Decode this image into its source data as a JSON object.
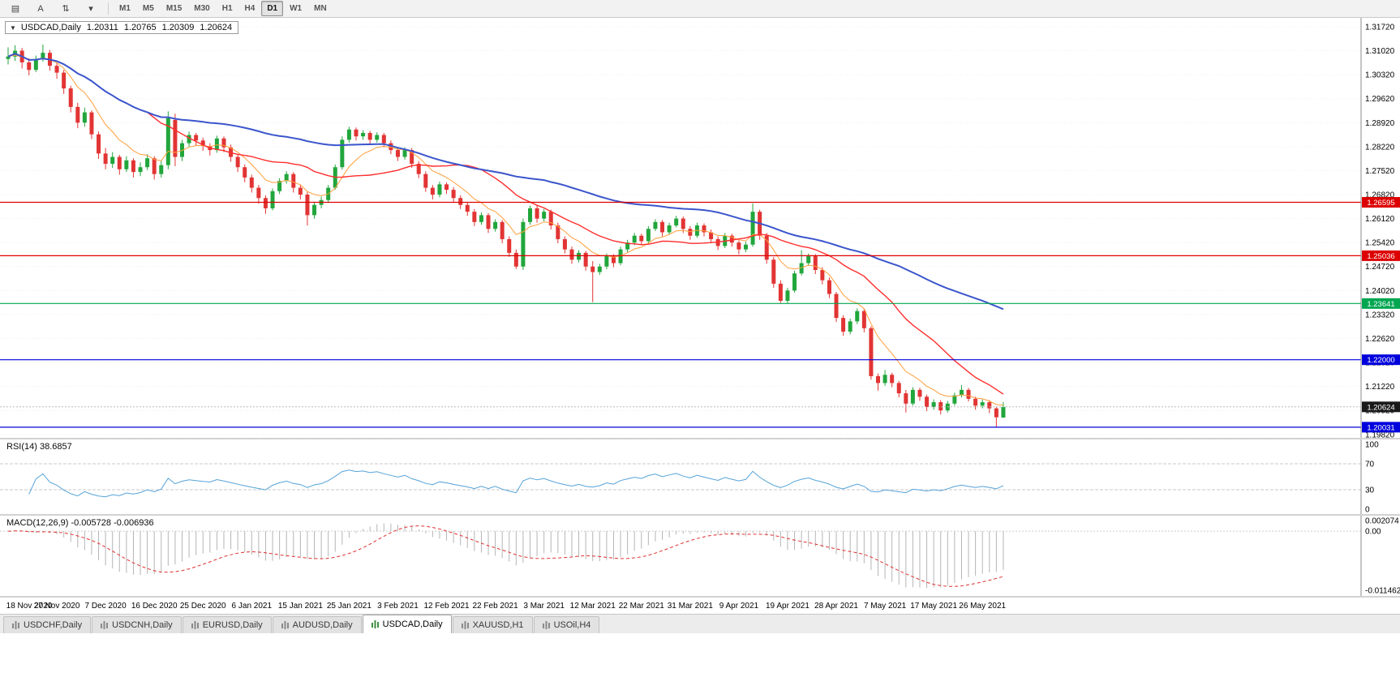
{
  "toolbar": {
    "icons": [
      {
        "name": "menu-icon",
        "glyph": "▤"
      },
      {
        "name": "text-tool-button",
        "glyph": "A"
      },
      {
        "name": "scale-tool-icon",
        "glyph": "⇅"
      },
      {
        "name": "dropdown-arrow-icon",
        "glyph": "▾"
      }
    ],
    "timeframes": [
      {
        "label": "M1",
        "active": false
      },
      {
        "label": "M5",
        "active": false
      },
      {
        "label": "M15",
        "active": false
      },
      {
        "label": "M30",
        "active": false
      },
      {
        "label": "H1",
        "active": false
      },
      {
        "label": "H4",
        "active": false
      },
      {
        "label": "D1",
        "active": true
      },
      {
        "label": "W1",
        "active": false
      },
      {
        "label": "MN",
        "active": false
      }
    ]
  },
  "chart": {
    "type": "candlestick",
    "header": {
      "collapse_glyph": "▼",
      "symbol": "USDCAD,Daily",
      "open": "1.20311",
      "high": "1.20765",
      "low": "1.20309",
      "close": "1.20624"
    },
    "colors": {
      "up": "#21a63c",
      "down": "#e23434",
      "grid": "#ececec",
      "axis_line": "#8a8a8a",
      "axis_text": "#000000"
    },
    "price_axis": {
      "start": 1.3172,
      "step": 0.007,
      "count": 18,
      "decimals": 5
    },
    "scale": {
      "top": 1.3198,
      "bottom": 1.1972
    },
    "hlines": [
      {
        "price": 1.26595,
        "label": "1.26595",
        "color": "#dd0000"
      },
      {
        "price": 1.25036,
        "label": "1.25036",
        "color": "#dd0000"
      },
      {
        "price": 1.23641,
        "label": "1.23641",
        "color": "#00a650"
      },
      {
        "price": 1.22,
        "label": "1.22000",
        "color": "#0000dd"
      },
      {
        "price": 1.20031,
        "label": "1.20031",
        "color": "#0000dd"
      }
    ],
    "current_price": {
      "price": 1.20624,
      "label": "1.20624",
      "bg": "#1a1a1a"
    },
    "ma_settings": [
      {
        "period": 8,
        "method": "ema",
        "color": "#ff9f3c",
        "width": 1
      },
      {
        "period": 21,
        "method": "sma",
        "color": "#ff2d2d",
        "width": 1.4
      },
      {
        "period": 55,
        "method": "sma",
        "color": "#3b55cc",
        "width": 2
      }
    ],
    "candles": [
      [
        1.3078,
        1.3112,
        1.3062,
        1.3085
      ],
      [
        1.3085,
        1.3118,
        1.3072,
        1.3102
      ],
      [
        1.3102,
        1.311,
        1.305,
        1.3068
      ],
      [
        1.3068,
        1.308,
        1.303,
        1.3046
      ],
      [
        1.3046,
        1.3088,
        1.304,
        1.3078
      ],
      [
        1.3078,
        1.312,
        1.307,
        1.3096
      ],
      [
        1.3096,
        1.3104,
        1.3044,
        1.3058
      ],
      [
        1.3058,
        1.3068,
        1.302,
        1.3038
      ],
      [
        1.3038,
        1.3046,
        1.2976,
        1.2992
      ],
      [
        1.2992,
        1.3,
        1.2922,
        1.2938
      ],
      [
        1.2938,
        1.295,
        1.2876,
        1.2892
      ],
      [
        1.2892,
        1.2936,
        1.288,
        1.2922
      ],
      [
        1.2922,
        1.2928,
        1.2844,
        1.2858
      ],
      [
        1.2858,
        1.2866,
        1.2786,
        1.2802
      ],
      [
        1.2802,
        1.2818,
        1.2756,
        1.2772
      ],
      [
        1.2772,
        1.2806,
        1.276,
        1.2792
      ],
      [
        1.2792,
        1.2798,
        1.274,
        1.2756
      ],
      [
        1.2756,
        1.2794,
        1.2748,
        1.2782
      ],
      [
        1.2782,
        1.2788,
        1.2732,
        1.2748
      ],
      [
        1.2748,
        1.2776,
        1.2736,
        1.2762
      ],
      [
        1.2762,
        1.28,
        1.2754,
        1.2788
      ],
      [
        1.2788,
        1.2794,
        1.2726,
        1.2742
      ],
      [
        1.2742,
        1.278,
        1.2732,
        1.2768
      ],
      [
        1.2768,
        1.2925,
        1.2756,
        1.2905
      ],
      [
        1.29,
        1.2918,
        1.2765,
        1.2792
      ],
      [
        1.2792,
        1.2842,
        1.278,
        1.2832
      ],
      [
        1.2832,
        1.2866,
        1.282,
        1.2856
      ],
      [
        1.2856,
        1.2862,
        1.2824,
        1.284
      ],
      [
        1.284,
        1.2848,
        1.281,
        1.2824
      ],
      [
        1.2824,
        1.2832,
        1.2796,
        1.2812
      ],
      [
        1.2812,
        1.2854,
        1.2804,
        1.2846
      ],
      [
        1.2846,
        1.2852,
        1.2806,
        1.282
      ],
      [
        1.282,
        1.2828,
        1.2778,
        1.2792
      ],
      [
        1.2792,
        1.28,
        1.2748,
        1.2762
      ],
      [
        1.2762,
        1.277,
        1.2718,
        1.2732
      ],
      [
        1.2732,
        1.274,
        1.2688,
        1.2702
      ],
      [
        1.2702,
        1.271,
        1.2656,
        1.2672
      ],
      [
        1.2672,
        1.268,
        1.2626,
        1.2642
      ],
      [
        1.2642,
        1.27,
        1.2636,
        1.2692
      ],
      [
        1.2692,
        1.273,
        1.2684,
        1.2722
      ],
      [
        1.2722,
        1.275,
        1.2714,
        1.2742
      ],
      [
        1.2742,
        1.2748,
        1.2688,
        1.2702
      ],
      [
        1.2702,
        1.271,
        1.2668,
        1.2682
      ],
      [
        1.2682,
        1.269,
        1.2592,
        1.2622
      ],
      [
        1.2622,
        1.266,
        1.2612,
        1.2652
      ],
      [
        1.2652,
        1.2676,
        1.2642,
        1.2666
      ],
      [
        1.2666,
        1.271,
        1.2658,
        1.2702
      ],
      [
        1.2702,
        1.277,
        1.2696,
        1.2762
      ],
      [
        1.2762,
        1.2852,
        1.2755,
        1.2842
      ],
      [
        1.2842,
        1.288,
        1.2834,
        1.2872
      ],
      [
        1.2872,
        1.2878,
        1.284,
        1.2852
      ],
      [
        1.2852,
        1.287,
        1.2842,
        1.2862
      ],
      [
        1.2862,
        1.2868,
        1.283,
        1.2842
      ],
      [
        1.2842,
        1.2864,
        1.2834,
        1.2856
      ],
      [
        1.2856,
        1.2862,
        1.282,
        1.2832
      ],
      [
        1.2832,
        1.284,
        1.28,
        1.2812
      ],
      [
        1.2812,
        1.282,
        1.278,
        1.2792
      ],
      [
        1.2792,
        1.282,
        1.2784,
        1.2812
      ],
      [
        1.2812,
        1.2818,
        1.276,
        1.2772
      ],
      [
        1.2772,
        1.278,
        1.273,
        1.2742
      ],
      [
        1.2742,
        1.275,
        1.269,
        1.2702
      ],
      [
        1.2702,
        1.271,
        1.2668,
        1.2682
      ],
      [
        1.2682,
        1.272,
        1.2674,
        1.2712
      ],
      [
        1.2712,
        1.2718,
        1.2684,
        1.2696
      ],
      [
        1.2696,
        1.2704,
        1.266,
        1.2672
      ],
      [
        1.2672,
        1.268,
        1.264,
        1.2652
      ],
      [
        1.2652,
        1.266,
        1.262,
        1.2632
      ],
      [
        1.2632,
        1.264,
        1.259,
        1.2602
      ],
      [
        1.2602,
        1.263,
        1.2594,
        1.2622
      ],
      [
        1.2622,
        1.2628,
        1.257,
        1.2582
      ],
      [
        1.2582,
        1.261,
        1.2574,
        1.2602
      ],
      [
        1.2602,
        1.2608,
        1.254,
        1.2552
      ],
      [
        1.2552,
        1.256,
        1.25,
        1.2512
      ],
      [
        1.2512,
        1.2522,
        1.2465,
        1.2472
      ],
      [
        1.2472,
        1.2612,
        1.2462,
        1.2602
      ],
      [
        1.2602,
        1.265,
        1.2594,
        1.2642
      ],
      [
        1.2642,
        1.265,
        1.26,
        1.2612
      ],
      [
        1.2612,
        1.264,
        1.2604,
        1.2632
      ],
      [
        1.2632,
        1.2638,
        1.258,
        1.2592
      ],
      [
        1.2592,
        1.26,
        1.254,
        1.2552
      ],
      [
        1.2552,
        1.256,
        1.251,
        1.2522
      ],
      [
        1.2522,
        1.253,
        1.248,
        1.2492
      ],
      [
        1.2492,
        1.252,
        1.2484,
        1.2512
      ],
      [
        1.2512,
        1.2518,
        1.246,
        1.2472
      ],
      [
        1.2472,
        1.2488,
        1.2368,
        1.2456
      ],
      [
        1.2456,
        1.248,
        1.2448,
        1.2472
      ],
      [
        1.2472,
        1.251,
        1.2464,
        1.2502
      ],
      [
        1.2502,
        1.2508,
        1.247,
        1.2482
      ],
      [
        1.2482,
        1.253,
        1.2476,
        1.2522
      ],
      [
        1.2522,
        1.255,
        1.2514,
        1.2542
      ],
      [
        1.2542,
        1.257,
        1.2534,
        1.2562
      ],
      [
        1.2562,
        1.2568,
        1.2534,
        1.2546
      ],
      [
        1.2546,
        1.259,
        1.254,
        1.2582
      ],
      [
        1.2582,
        1.261,
        1.2576,
        1.2602
      ],
      [
        1.2602,
        1.2608,
        1.256,
        1.2572
      ],
      [
        1.2572,
        1.26,
        1.2566,
        1.2592
      ],
      [
        1.2592,
        1.262,
        1.2586,
        1.2612
      ],
      [
        1.2612,
        1.2618,
        1.257,
        1.2582
      ],
      [
        1.2582,
        1.259,
        1.255,
        1.2562
      ],
      [
        1.2562,
        1.26,
        1.2556,
        1.2592
      ],
      [
        1.2592,
        1.2598,
        1.256,
        1.2572
      ],
      [
        1.2572,
        1.258,
        1.254,
        1.2552
      ],
      [
        1.2552,
        1.256,
        1.252,
        1.2532
      ],
      [
        1.2532,
        1.257,
        1.2526,
        1.2562
      ],
      [
        1.2562,
        1.2568,
        1.253,
        1.2542
      ],
      [
        1.2542,
        1.2548,
        1.2508,
        1.2522
      ],
      [
        1.2522,
        1.2544,
        1.2514,
        1.2536
      ],
      [
        1.2536,
        1.2656,
        1.253,
        1.2632
      ],
      [
        1.2632,
        1.2638,
        1.255,
        1.2562
      ],
      [
        1.2562,
        1.257,
        1.248,
        1.2492
      ],
      [
        1.2492,
        1.25,
        1.241,
        1.2422
      ],
      [
        1.2422,
        1.2432,
        1.2366,
        1.2372
      ],
      [
        1.2372,
        1.241,
        1.2364,
        1.2402
      ],
      [
        1.2402,
        1.246,
        1.2396,
        1.2452
      ],
      [
        1.2452,
        1.252,
        1.2446,
        1.2482
      ],
      [
        1.2482,
        1.251,
        1.2474,
        1.2502
      ],
      [
        1.2502,
        1.2508,
        1.245,
        1.2462
      ],
      [
        1.2462,
        1.247,
        1.242,
        1.2432
      ],
      [
        1.2432,
        1.244,
        1.238,
        1.2392
      ],
      [
        1.2392,
        1.2398,
        1.231,
        1.2322
      ],
      [
        1.2322,
        1.233,
        1.227,
        1.2282
      ],
      [
        1.2282,
        1.232,
        1.2274,
        1.2312
      ],
      [
        1.2312,
        1.235,
        1.2304,
        1.2342
      ],
      [
        1.2342,
        1.2348,
        1.228,
        1.2292
      ],
      [
        1.2292,
        1.2298,
        1.2142,
        1.2152
      ],
      [
        1.2152,
        1.216,
        1.211,
        1.2132
      ],
      [
        1.2132,
        1.217,
        1.2124,
        1.2156
      ],
      [
        1.2156,
        1.2162,
        1.212,
        1.2132
      ],
      [
        1.2132,
        1.2138,
        1.209,
        1.2102
      ],
      [
        1.2102,
        1.2112,
        1.2046,
        1.2072
      ],
      [
        1.2072,
        1.212,
        1.2066,
        1.2112
      ],
      [
        1.2112,
        1.2118,
        1.208,
        1.2092
      ],
      [
        1.2092,
        1.2098,
        1.205,
        1.2062
      ],
      [
        1.2062,
        1.2084,
        1.2054,
        1.2076
      ],
      [
        1.2076,
        1.2082,
        1.204,
        1.2052
      ],
      [
        1.2052,
        1.208,
        1.2046,
        1.2072
      ],
      [
        1.2072,
        1.2104,
        1.2066,
        1.2096
      ],
      [
        1.2096,
        1.2126,
        1.209,
        1.2112
      ],
      [
        1.2112,
        1.2118,
        1.2078,
        1.2086
      ],
      [
        1.2086,
        1.2092,
        1.2054,
        1.2066
      ],
      [
        1.2066,
        1.2084,
        1.2058,
        1.2076
      ],
      [
        1.2076,
        1.2082,
        1.2044,
        1.2058
      ],
      [
        1.2058,
        1.2062,
        1.2004,
        1.2032
      ],
      [
        1.20311,
        1.20765,
        1.20309,
        1.20624
      ]
    ],
    "date_labels": [
      "18 Nov 2020",
      "27 Nov 2020",
      "7 Dec 2020",
      "16 Dec 2020",
      "25 Dec 2020",
      "6 Jan 2021",
      "15 Jan 2021",
      "25 Jan 2021",
      "3 Feb 2021",
      "12 Feb 2021",
      "22 Feb 2021",
      "3 Mar 2021",
      "12 Mar 2021",
      "22 Mar 2021",
      "31 Mar 2021",
      "9 Apr 2021",
      "19 Apr 2021",
      "28 Apr 2021",
      "7 May 2021",
      "17 May 2021",
      "26 May 2021"
    ],
    "label_interval": 7
  },
  "rsi": {
    "label": "RSI(14) 38.6857",
    "period": 14,
    "color": "#55a3d8",
    "levels": [
      70,
      30
    ],
    "axis_labels": [
      {
        "v": 100,
        "t": "100"
      },
      {
        "v": 70,
        "t": "70"
      },
      {
        "v": 30,
        "t": "30"
      },
      {
        "v": 0,
        "t": "0"
      }
    ]
  },
  "macd": {
    "label": "MACD(12,26,9) -0.005728 -0.006936",
    "fast": 12,
    "slow": 26,
    "signal_period": 9,
    "hist_color": "#b5b5b5",
    "signal_color": "#e03030",
    "scale": {
      "max": 0.002074,
      "min": -0.011462
    },
    "axis_labels": [
      {
        "v": 0.002074,
        "t": "0.002074"
      },
      {
        "v": 0,
        "t": "0.00"
      },
      {
        "v": -0.011462,
        "t": "-0.011462"
      }
    ]
  },
  "tabs": [
    {
      "label": "USDCHF,Daily",
      "active": false
    },
    {
      "label": "USDCNH,Daily",
      "active": false
    },
    {
      "label": "EURUSD,Daily",
      "active": false
    },
    {
      "label": "AUDUSD,Daily",
      "active": false
    },
    {
      "label": "USDCAD,Daily",
      "active": true
    },
    {
      "label": "XAUUSD,H1",
      "active": false
    },
    {
      "label": "USOil,H4",
      "active": false
    }
  ]
}
